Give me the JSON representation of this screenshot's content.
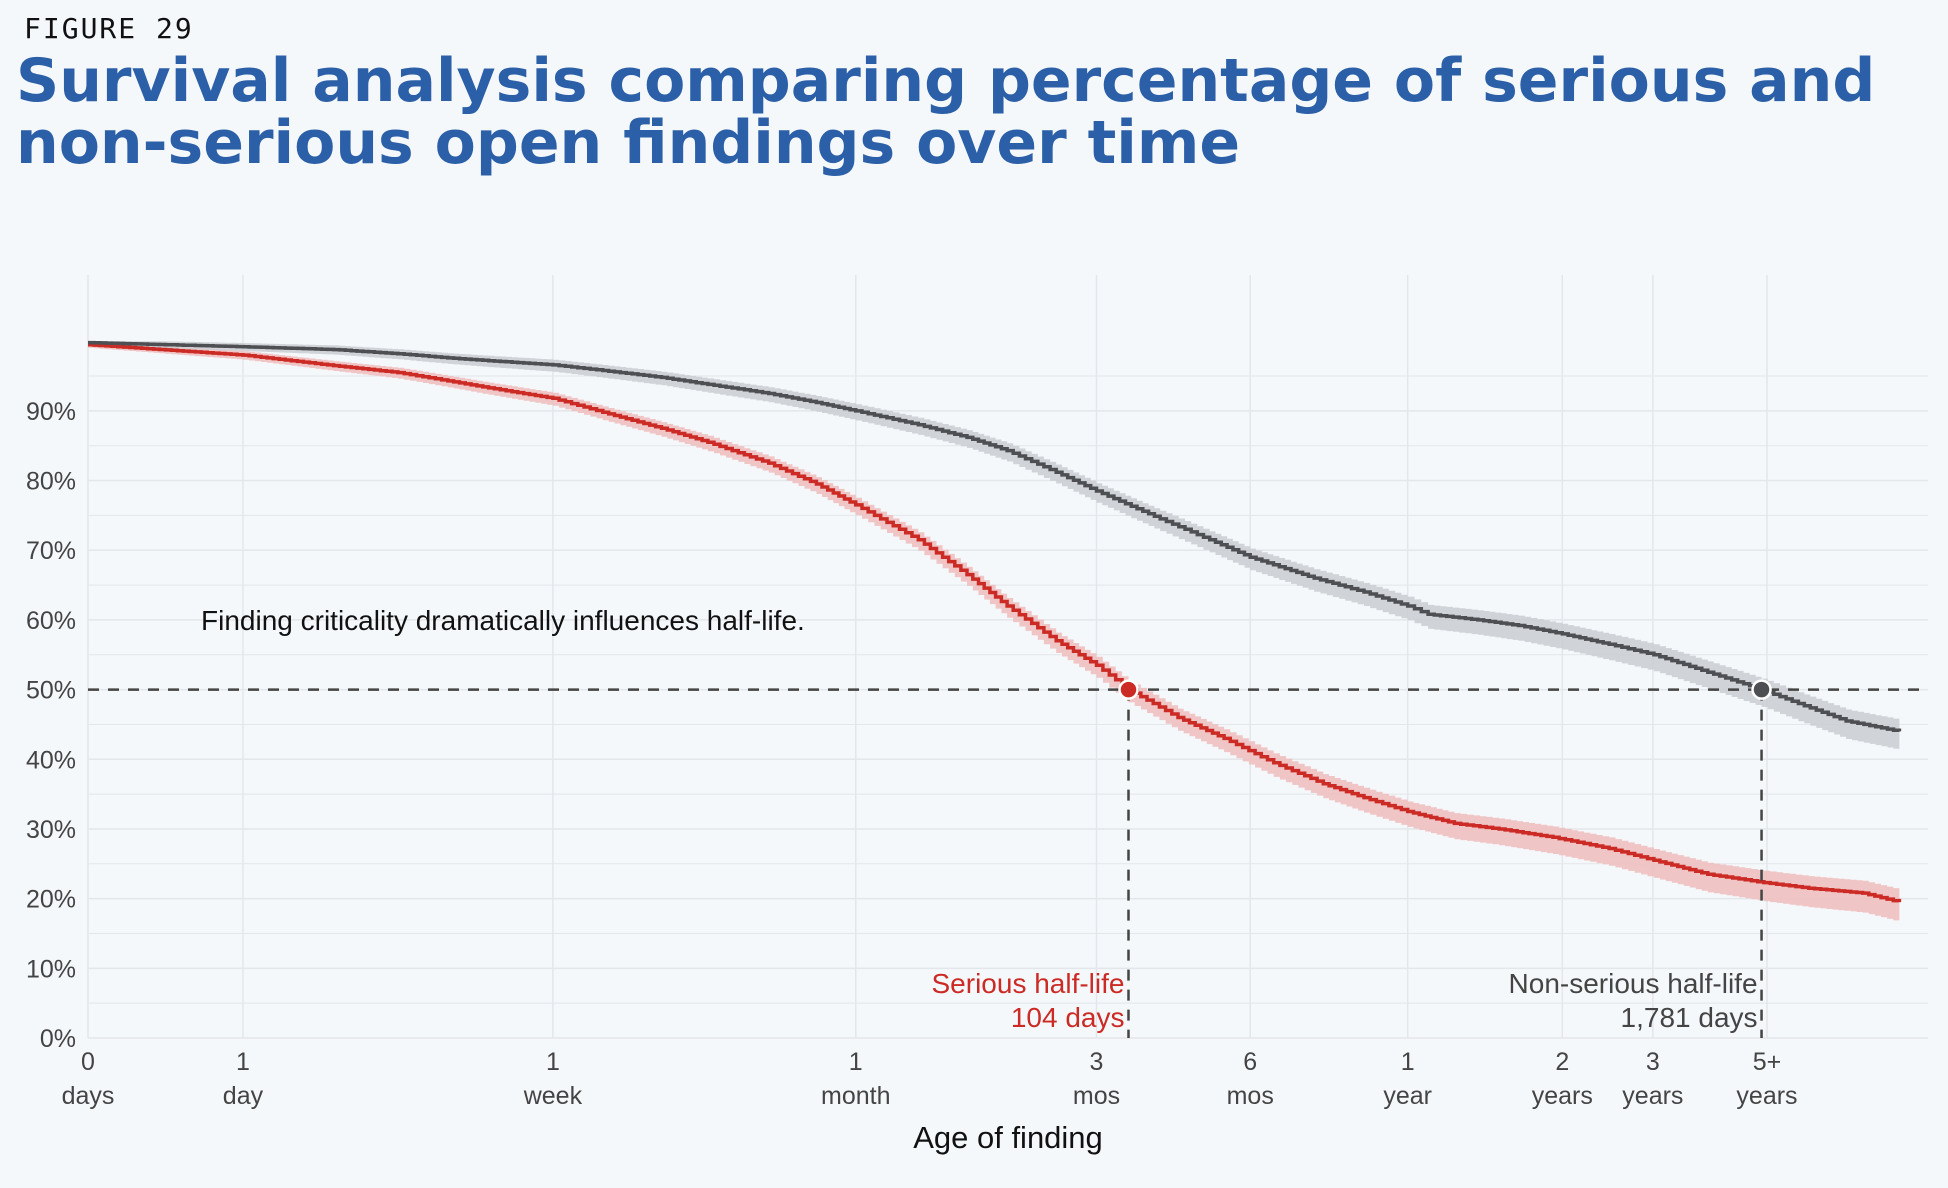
{
  "figure_label": "FIGURE 29",
  "title": "Survival analysis comparing percentage of serious and non-serious open findings over time",
  "colors": {
    "serious": "#cc2b25",
    "serious_band": "#efbcbc",
    "nonserious": "#4e4f52",
    "nonserious_band": "#c9cdd1",
    "grid": "#e3e6ea",
    "reference": "#444444"
  },
  "chart_data": {
    "type": "line",
    "title": "Survival analysis comparing percentage of serious and non-serious open findings over time",
    "xlabel": "Age of finding",
    "ylabel": "",
    "x_scale": "log(1 + days)",
    "x_ticks": [
      {
        "days": 0,
        "line1": "0",
        "line2": "days"
      },
      {
        "days": 1,
        "line1": "1",
        "line2": "day"
      },
      {
        "days": 7,
        "line1": "1",
        "line2": "week"
      },
      {
        "days": 30,
        "line1": "1",
        "line2": "month"
      },
      {
        "days": 90,
        "line1": "3",
        "line2": "mos"
      },
      {
        "days": 180,
        "line1": "6",
        "line2": "mos"
      },
      {
        "days": 365,
        "line1": "1",
        "line2": "year"
      },
      {
        "days": 730,
        "line1": "2",
        "line2": "years"
      },
      {
        "days": 1095,
        "line1": "3",
        "line2": "years"
      },
      {
        "days": 1825,
        "line1": "5+",
        "line2": "years"
      }
    ],
    "y_ticks": [
      "0%",
      "10%",
      "20%",
      "30%",
      "40%",
      "50%",
      "60%",
      "70%",
      "80%",
      "90%"
    ],
    "ylim": [
      0,
      100
    ],
    "grid": true,
    "reference_line": {
      "y": 50
    },
    "annotation": "Finding criticality dramatically influences half-life.",
    "series": [
      {
        "key": "serious",
        "name": "Serious",
        "x_days": [
          0,
          1,
          2,
          3,
          4,
          5,
          7,
          9,
          12,
          15,
          20,
          25,
          30,
          40,
          50,
          60,
          75,
          90,
          104,
          130,
          160,
          200,
          250,
          300,
          365,
          450,
          550,
          700,
          900,
          1100,
          1400,
          1800,
          2200,
          2800,
          3300
        ],
        "y_pct": [
          99.5,
          98,
          96.5,
          95.5,
          94.3,
          93.3,
          91.8,
          89.8,
          87.5,
          85.5,
          82.5,
          79.5,
          76.5,
          71.5,
          66.5,
          62,
          57,
          53.5,
          50,
          46,
          43,
          39.5,
          36.5,
          34.5,
          32.5,
          30.8,
          30,
          28.8,
          27.2,
          25.5,
          23.5,
          22.3,
          21.5,
          20.8,
          19.5
        ],
        "band_half_width_pct": 1.5,
        "half_life": {
          "days": 104,
          "label": "Serious half-life",
          "value_label": "104 days"
        }
      },
      {
        "key": "nonserious",
        "name": "Non-serious",
        "x_days": [
          0,
          1,
          2,
          3,
          4,
          5,
          7,
          9,
          12,
          15,
          20,
          25,
          30,
          40,
          50,
          60,
          75,
          90,
          120,
          150,
          180,
          240,
          300,
          365,
          400,
          500,
          600,
          730,
          900,
          1100,
          1400,
          1781,
          2100,
          2600,
          3300
        ],
        "y_pct": [
          99.8,
          99.2,
          98.8,
          98.2,
          97.6,
          97.2,
          96.6,
          95.8,
          94.8,
          93.8,
          92.5,
          91.2,
          90,
          88,
          86.2,
          84.3,
          81.2,
          78.5,
          74.5,
          71.5,
          69,
          66,
          64,
          62,
          60.8,
          60,
          59.2,
          58,
          56.5,
          55,
          52.5,
          50,
          48,
          45.5,
          44
        ],
        "band_half_width_pct": 1.4,
        "half_life": {
          "days": 1781,
          "label": "Non-serious half-life",
          "value_label": "1,781 days"
        }
      }
    ]
  }
}
